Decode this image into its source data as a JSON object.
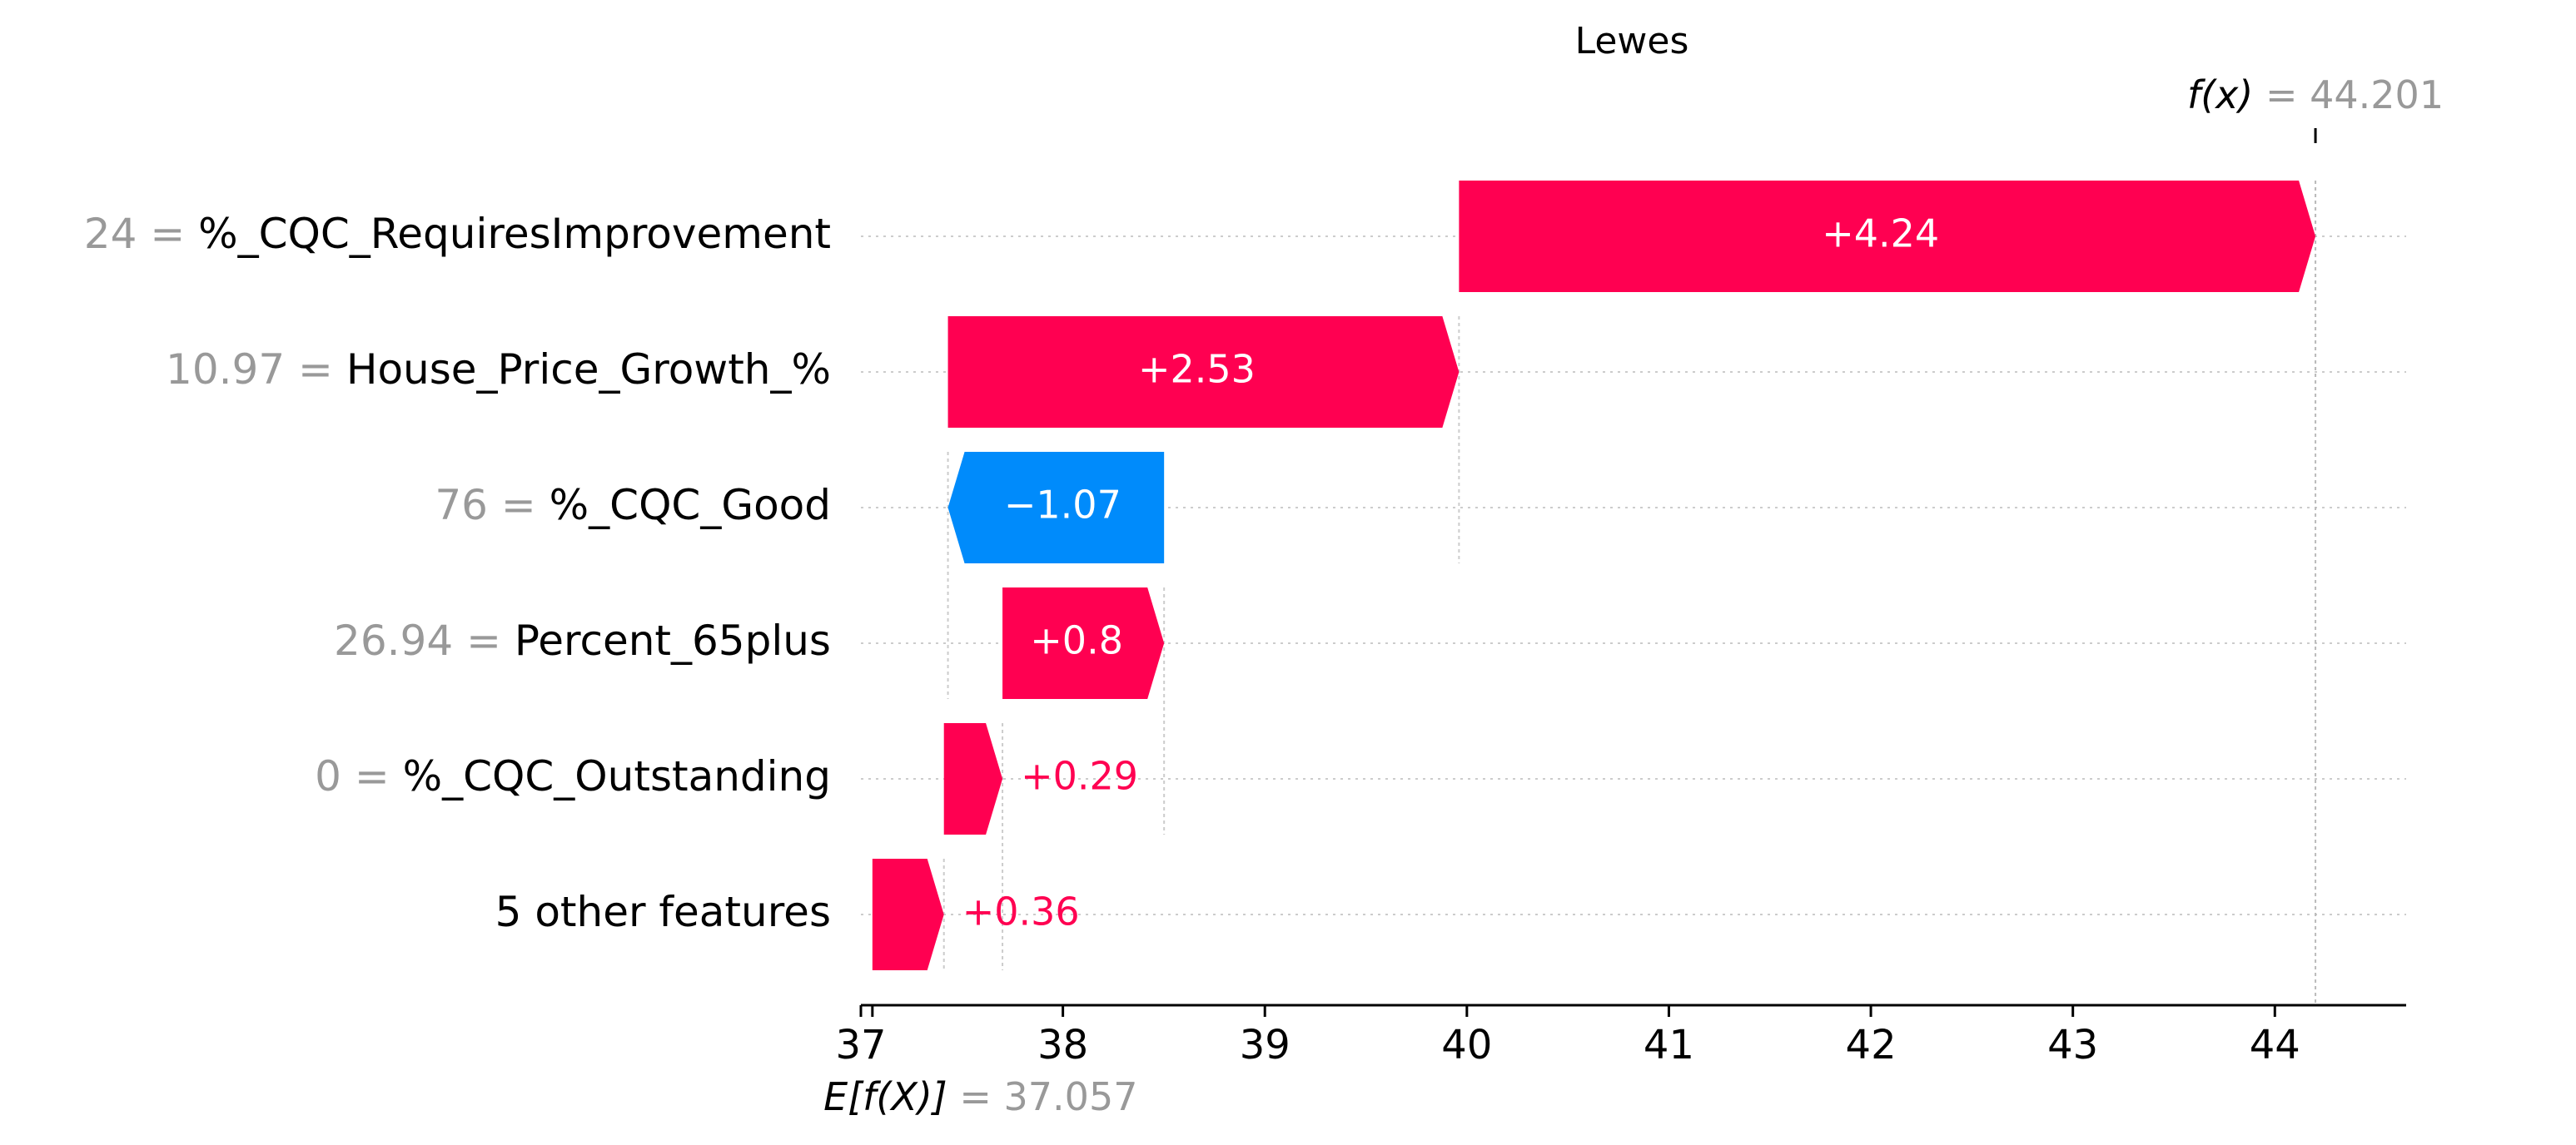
{
  "chart_data": {
    "type": "waterfall",
    "title": "Lewes",
    "base_value": 37.057,
    "base_label": "E[f(X)]",
    "base_value_text": "= 37.057",
    "output_value": 44.201,
    "output_label": "f(x)",
    "output_value_text": "= 44.201",
    "xlim": [
      37.0,
      44.65
    ],
    "xticks": [
      37,
      38,
      39,
      40,
      41,
      42,
      43,
      44
    ],
    "colors": {
      "positive": "#ff0051",
      "negative": "#008bfb",
      "axis": "#000000",
      "grid": "#cccccc",
      "muted": "#999999"
    },
    "features": [
      {
        "feature_value": "24",
        "feature": "%_CQC_RequiresImprovement",
        "start": 39.961,
        "end": 44.201,
        "contribution": 4.24,
        "label": "+4.24"
      },
      {
        "feature_value": "10.97",
        "feature": "House_Price_Growth_%",
        "start": 37.431,
        "end": 39.961,
        "contribution": 2.53,
        "label": "+2.53"
      },
      {
        "feature_value": "76",
        "feature": "%_CQC_Good",
        "start": 38.501,
        "end": 37.431,
        "contribution": -1.07,
        "label": "−1.07"
      },
      {
        "feature_value": "26.94",
        "feature": "Percent_65plus",
        "start": 37.701,
        "end": 38.501,
        "contribution": 0.8,
        "label": "+0.8"
      },
      {
        "feature_value": "0",
        "feature": "%_CQC_Outstanding",
        "start": 37.411,
        "end": 37.701,
        "contribution": 0.29,
        "label": "+0.29"
      },
      {
        "feature_value": "",
        "feature": "5 other features",
        "start": 37.057,
        "end": 37.411,
        "contribution": 0.36,
        "label": "+0.36"
      }
    ]
  }
}
